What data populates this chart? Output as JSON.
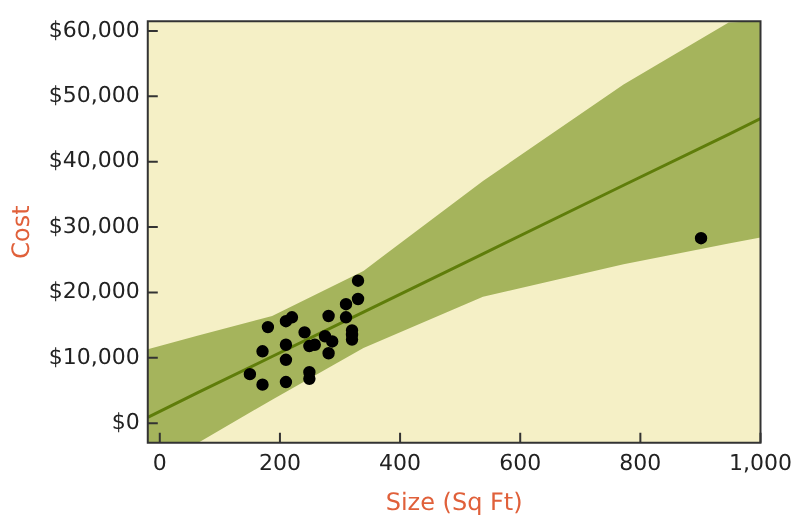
{
  "chart_data": {
    "type": "scatter",
    "xlabel": "Size (Sq Ft)",
    "ylabel": "Cost",
    "xlim": [
      -20,
      1000
    ],
    "xticks": [
      0,
      200,
      400,
      600,
      800,
      {
        "value": 1000,
        "label": "1,000"
      }
    ],
    "ylim": [
      -3000,
      61500
    ],
    "yticks": [
      {
        "value": 0,
        "label": "$0"
      },
      {
        "value": 10000,
        "label": "$10,000"
      },
      {
        "value": 20000,
        "label": "$20,000"
      },
      {
        "value": 30000,
        "label": "$30,000"
      },
      {
        "value": 40000,
        "label": "$40,000"
      },
      {
        "value": 50000,
        "label": "$50,000"
      },
      {
        "value": 60000,
        "label": "$60,000"
      }
    ],
    "grid": false,
    "legend": false,
    "marker": "circle",
    "series": [
      {
        "type": "line",
        "color": "#5f7d0a",
        "marker": "none",
        "x": [
          -20,
          64,
          187,
          339,
          538,
          772,
          947,
          1000
        ],
        "values": [
          900,
          4700,
          10200,
          17000,
          25900,
          36400,
          44200,
          46600
        ],
        "lower": [
          -3000,
          -3000,
          3600,
          11500,
          19350,
          24300,
          27500,
          28400
        ],
        "upper": [
          11300,
          13400,
          16400,
          23300,
          37050,
          51800,
          61300,
          61500
        ]
      },
      {
        "type": "scatter",
        "color": "#000000",
        "x": [
          330,
          330,
          310,
          281,
          310,
          220,
          210,
          180,
          241,
          320,
          320,
          320,
          275,
          287,
          258,
          249,
          210,
          171,
          281,
          210,
          150,
          249,
          249,
          171,
          210,
          901
        ],
        "values": [
          21800,
          19000,
          18200,
          16400,
          16200,
          16200,
          15600,
          14700,
          13900,
          14200,
          13500,
          12800,
          13300,
          12500,
          12000,
          11800,
          12000,
          11000,
          10700,
          9700,
          7500,
          7800,
          6800,
          5900,
          6300,
          28300
        ]
      }
    ]
  }
}
